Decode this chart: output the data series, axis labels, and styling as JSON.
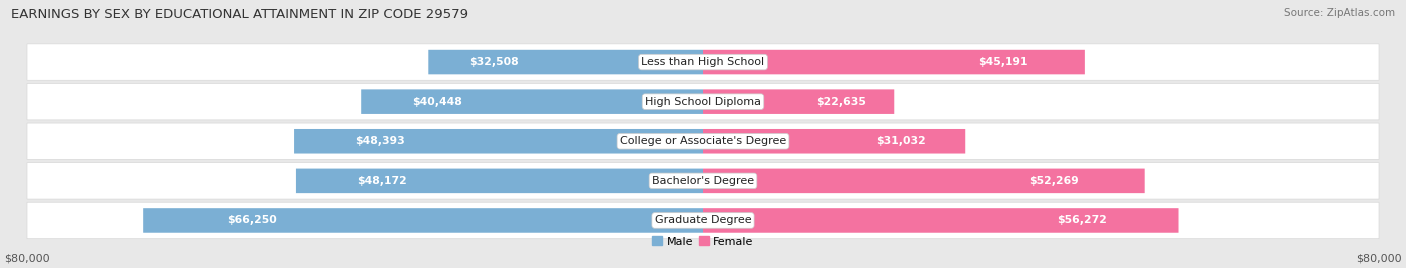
{
  "title": "EARNINGS BY SEX BY EDUCATIONAL ATTAINMENT IN ZIP CODE 29579",
  "source": "Source: ZipAtlas.com",
  "categories": [
    "Less than High School",
    "High School Diploma",
    "College or Associate's Degree",
    "Bachelor's Degree",
    "Graduate Degree"
  ],
  "male_values": [
    32508,
    40448,
    48393,
    48172,
    66250
  ],
  "female_values": [
    45191,
    22635,
    31032,
    52269,
    56272
  ],
  "male_color": "#7bafd4",
  "female_color": "#f472a0",
  "male_color_light": "#b8d4ea",
  "female_color_light": "#f9b8d0",
  "male_label": "Male",
  "female_label": "Female",
  "xlim": 80000,
  "bar_height": 0.62,
  "row_bg_color": "#ffffff",
  "row_border_color": "#d8d8d8",
  "background_color": "#e8e8e8",
  "title_fontsize": 9.5,
  "label_fontsize": 8,
  "value_fontsize": 7.8,
  "tick_fontsize": 8,
  "source_fontsize": 7.5,
  "inside_label_threshold": 18000
}
